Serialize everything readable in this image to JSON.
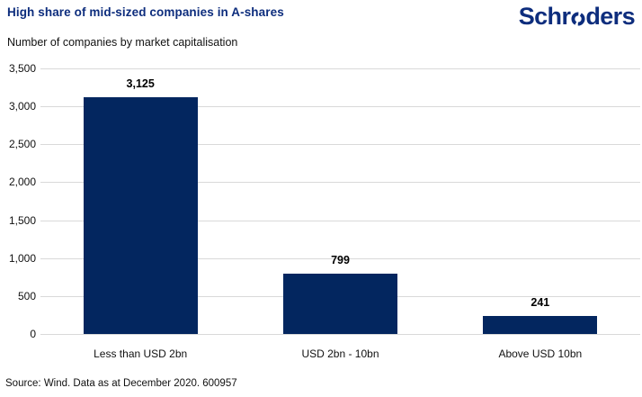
{
  "header": {
    "title": "High share of mid-sized companies in A-shares",
    "logo": {
      "text": "Schroders",
      "part1": "Schr",
      "part2": "ders"
    }
  },
  "subtitle": "Number of companies by market capitalisation",
  "source": "Source: Wind. Data as at December 2020. 600957",
  "colors": {
    "brand_blue": "#0d2d7d",
    "bar_blue": "#03265f",
    "gridline": "#d9d9d9",
    "text": "#111111"
  },
  "chart_data": {
    "type": "bar",
    "title": "High share of mid-sized companies in A-shares",
    "subtitle": "Number of companies by market capitalisation",
    "categories": [
      "Less than USD 2bn",
      "USD 2bn - 10bn",
      "Above USD 10bn"
    ],
    "values": [
      3125,
      799,
      241
    ],
    "value_labels": [
      "3,125",
      "799",
      "241"
    ],
    "xlabel": "",
    "ylabel": "",
    "ylim": [
      0,
      3500
    ],
    "ytick_interval": 500,
    "ytick_labels": [
      "0",
      "500",
      "1,000",
      "1,500",
      "2,000",
      "2,500",
      "3,000",
      "3,500"
    ],
    "grid": true,
    "legend": false,
    "bar_color": "#03265f"
  }
}
